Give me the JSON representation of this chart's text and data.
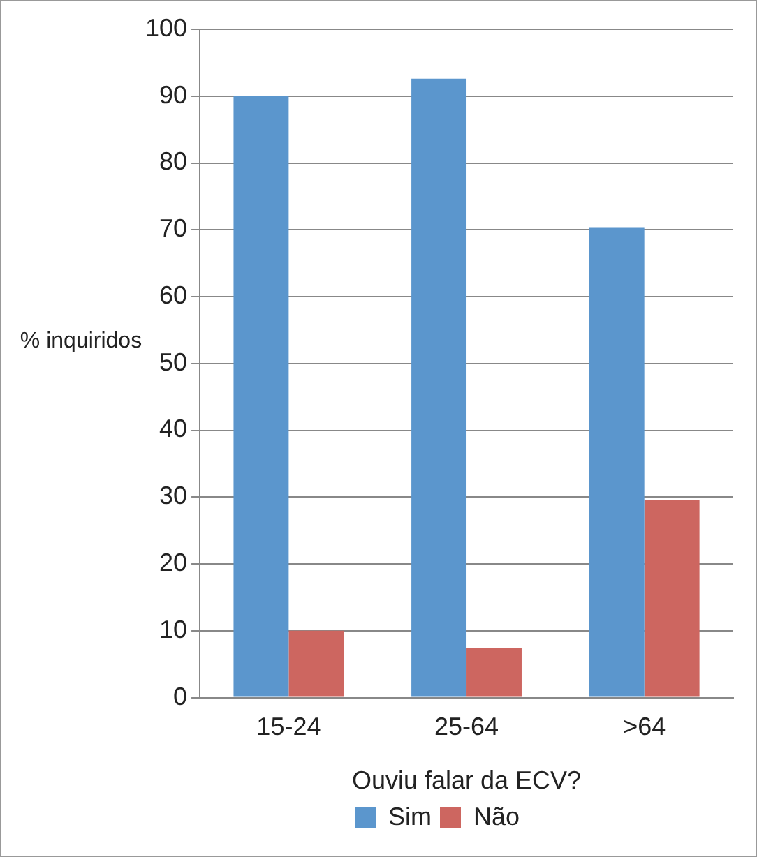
{
  "chart_data": {
    "type": "bar",
    "xlabel": "Ouviu falar da ECV?",
    "ylabel": "% inquiridos",
    "categories": [
      "15-24",
      "25-64",
      ">64"
    ],
    "series": [
      {
        "name": "Sim",
        "color": "#5b96cd",
        "values": [
          90,
          92.6,
          70.4
        ]
      },
      {
        "name": "Não",
        "color": "#cd6660",
        "values": [
          10,
          7.4,
          29.6
        ]
      }
    ],
    "ylim": [
      0,
      100
    ],
    "yticks": [
      0,
      10,
      20,
      30,
      40,
      50,
      60,
      70,
      80,
      90,
      100
    ],
    "grid": "y",
    "legend": "bottom"
  }
}
